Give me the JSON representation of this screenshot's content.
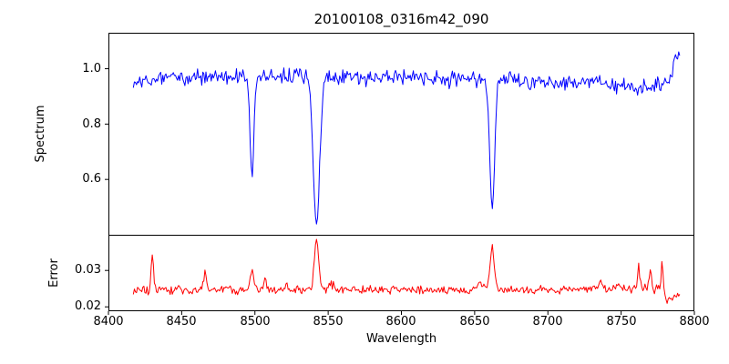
{
  "chart_data": {
    "type": "line",
    "title": "20100108_0316m42_090",
    "xlabel": "Wavelength",
    "xlim": [
      8400,
      8800
    ],
    "x_ticks": [
      8400,
      8450,
      8500,
      8550,
      8600,
      8650,
      8700,
      8750,
      8800
    ],
    "grid": false,
    "legend": "none",
    "panels": [
      {
        "ylabel": "Spectrum",
        "ylim": [
          0.4,
          1.13
        ],
        "y_ticks": [
          "0.6",
          "0.8",
          "1.0"
        ],
        "y_tick_values": [
          0.6,
          0.8,
          1.0
        ],
        "series": [
          {
            "name": "spectrum",
            "color": "#0000ff",
            "seed": 20100108,
            "n_points": 520,
            "x_start": 8417,
            "x_end": 8790,
            "noise_amplitude": 0.028,
            "continuum_points": [
              [
                8417,
                0.95
              ],
              [
                8435,
                0.965
              ],
              [
                8470,
                0.968
              ],
              [
                8540,
                0.97
              ],
              [
                8620,
                0.967
              ],
              [
                8690,
                0.957
              ],
              [
                8730,
                0.946
              ],
              [
                8758,
                0.93
              ],
              [
                8770,
                0.934
              ],
              [
                8778,
                0.944
              ],
              [
                8784,
                0.96
              ],
              [
                8787,
                1.04
              ],
              [
                8790,
                1.06
              ]
            ],
            "absorption_lines": [
              {
                "center": 8498.0,
                "depth": 0.37,
                "sigma": 1.3
              },
              {
                "center": 8542.0,
                "depth": 0.55,
                "sigma": 2.2
              },
              {
                "center": 8662.0,
                "depth": 0.48,
                "sigma": 1.7
              }
            ]
          }
        ]
      },
      {
        "ylabel": "Error",
        "ylim": [
          0.0188,
          0.0398
        ],
        "y_ticks": [
          "0.02",
          "0.03"
        ],
        "y_tick_values": [
          0.02,
          0.03
        ],
        "series": [
          {
            "name": "error",
            "color": "#ff0000",
            "seed": 316,
            "n_points": 520,
            "x_start": 8417,
            "x_end": 8790,
            "noise_amplitude": 0.0012,
            "baseline_points": [
              [
                8417,
                0.0245
              ],
              [
                8560,
                0.0247
              ],
              [
                8700,
                0.0246
              ],
              [
                8776,
                0.0251
              ],
              [
                8779,
                0.0248
              ],
              [
                8781,
                0.0216
              ],
              [
                8785,
                0.0231
              ],
              [
                8790,
                0.0226
              ]
            ],
            "peaks": [
              {
                "center": 8430,
                "height": 0.009,
                "sigma": 0.8
              },
              {
                "center": 8448,
                "height": 0.0018,
                "sigma": 0.8
              },
              {
                "center": 8466,
                "height": 0.0055,
                "sigma": 0.9
              },
              {
                "center": 8481,
                "height": 0.0016,
                "sigma": 0.8
              },
              {
                "center": 8498,
                "height": 0.005,
                "sigma": 1.2
              },
              {
                "center": 8507,
                "height": 0.0028,
                "sigma": 0.9
              },
              {
                "center": 8521,
                "height": 0.0016,
                "sigma": 0.8
              },
              {
                "center": 8542,
                "height": 0.014,
                "sigma": 1.4
              },
              {
                "center": 8552,
                "height": 0.0018,
                "sigma": 2.0
              },
              {
                "center": 8654,
                "height": 0.002,
                "sigma": 1.5
              },
              {
                "center": 8662,
                "height": 0.0112,
                "sigma": 1.5
              },
              {
                "center": 8736,
                "height": 0.0022,
                "sigma": 1.0
              },
              {
                "center": 8748,
                "height": 0.0018,
                "sigma": 0.8
              },
              {
                "center": 8762,
                "height": 0.0058,
                "sigma": 0.9
              },
              {
                "center": 8770,
                "height": 0.005,
                "sigma": 0.8
              },
              {
                "center": 8778,
                "height": 0.0078,
                "sigma": 0.6
              }
            ]
          }
        ]
      }
    ]
  }
}
